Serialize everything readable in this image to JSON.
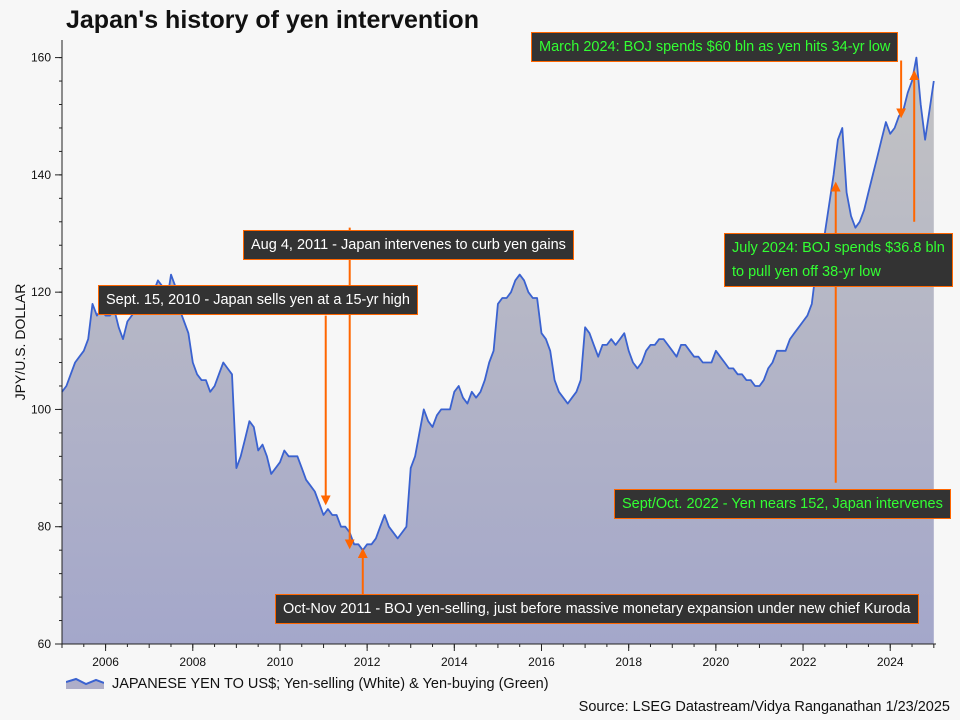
{
  "title": "Japan's history of yen intervention",
  "source": "Source: LSEG Datastream/Vidya Ranganathan 1/23/2025",
  "legend_label": "JAPANESE YEN TO US$;    Yen-selling (White) & Yen-buying (Green)",
  "colors": {
    "line": "#3a62d0",
    "area_top": "#c3c3c3",
    "area_bottom": "#a4a7ca",
    "arrow": "#ff6600",
    "callout_bg": "#333333",
    "callout_white": "#ffffff",
    "callout_green": "#33ff33"
  },
  "annotations": [
    {
      "text": "March 2024: BOJ spends $60 bln as yen hits 34-yr low",
      "color": "green",
      "arrow_x": 2024.25,
      "arrow_from": 159.5,
      "arrow_to": 150.5
    },
    {
      "text": "Aug 4, 2011 - Japan intervenes to curb yen gains",
      "color": "white",
      "arrow_x": 2011.6,
      "arrow_from": 131,
      "arrow_to": 77
    },
    {
      "text": "Sept. 15, 2010 - Japan sells yen at a 15-yr high",
      "color": "white",
      "arrow_x": 2011.05,
      "arrow_from": 116,
      "arrow_to": 84.5
    },
    {
      "text": "July 2024: BOJ spends $36.8 bln",
      "text2": "to pull yen off 38-yr low",
      "color": "green",
      "arrow_x": 2024.55,
      "arrow_from": 132,
      "arrow_to": 157
    },
    {
      "text": "Sept/Oct. 2022 - Yen nears 152, Japan intervenes",
      "color": "green",
      "arrow_x": 2022.75,
      "arrow_from": 87.5,
      "arrow_to": 138
    },
    {
      "text": "Oct-Nov 2011 - BOJ yen-selling, just before massive monetary expansion under new chief Kuroda",
      "color": "white",
      "arrow_x": 2011.9,
      "arrow_from": 65,
      "arrow_to": 75.5
    }
  ],
  "chart_data": {
    "type": "area",
    "xlabel": "",
    "ylabel": "JPY/U.S. DOLLAR",
    "xlim": [
      2005.0,
      2025.05
    ],
    "ylim": [
      60,
      163
    ],
    "xticks": [
      2006,
      2008,
      2010,
      2012,
      2014,
      2016,
      2018,
      2020,
      2022,
      2024
    ],
    "yticks": [
      60,
      80,
      100,
      120,
      140,
      160
    ],
    "grid": false,
    "legend": "bottom-left",
    "series": [
      {
        "name": "JAPANESE YEN TO US$",
        "x": [
          2005.0,
          2005.1,
          2005.2,
          2005.3,
          2005.4,
          2005.5,
          2005.6,
          2005.7,
          2005.8,
          2005.9,
          2006.0,
          2006.1,
          2006.2,
          2006.3,
          2006.4,
          2006.5,
          2006.6,
          2006.7,
          2006.8,
          2006.9,
          2007.0,
          2007.1,
          2007.2,
          2007.3,
          2007.4,
          2007.5,
          2007.6,
          2007.7,
          2007.8,
          2007.9,
          2008.0,
          2008.1,
          2008.2,
          2008.3,
          2008.4,
          2008.5,
          2008.6,
          2008.7,
          2008.8,
          2008.9,
          2009.0,
          2009.1,
          2009.2,
          2009.3,
          2009.4,
          2009.5,
          2009.6,
          2009.7,
          2009.8,
          2009.9,
          2010.0,
          2010.1,
          2010.2,
          2010.3,
          2010.4,
          2010.5,
          2010.6,
          2010.7,
          2010.8,
          2010.9,
          2011.0,
          2011.1,
          2011.2,
          2011.3,
          2011.4,
          2011.5,
          2011.6,
          2011.7,
          2011.8,
          2011.9,
          2012.0,
          2012.1,
          2012.2,
          2012.3,
          2012.4,
          2012.5,
          2012.6,
          2012.7,
          2012.8,
          2012.9,
          2013.0,
          2013.1,
          2013.2,
          2013.3,
          2013.4,
          2013.5,
          2013.6,
          2013.7,
          2013.8,
          2013.9,
          2014.0,
          2014.1,
          2014.2,
          2014.3,
          2014.4,
          2014.5,
          2014.6,
          2014.7,
          2014.8,
          2014.9,
          2015.0,
          2015.1,
          2015.2,
          2015.3,
          2015.4,
          2015.5,
          2015.6,
          2015.7,
          2015.8,
          2015.9,
          2016.0,
          2016.1,
          2016.2,
          2016.3,
          2016.4,
          2016.5,
          2016.6,
          2016.7,
          2016.8,
          2016.9,
          2017.0,
          2017.1,
          2017.2,
          2017.3,
          2017.4,
          2017.5,
          2017.6,
          2017.7,
          2017.8,
          2017.9,
          2018.0,
          2018.1,
          2018.2,
          2018.3,
          2018.4,
          2018.5,
          2018.6,
          2018.7,
          2018.8,
          2018.9,
          2019.0,
          2019.1,
          2019.2,
          2019.3,
          2019.4,
          2019.5,
          2019.6,
          2019.7,
          2019.8,
          2019.9,
          2020.0,
          2020.1,
          2020.2,
          2020.3,
          2020.4,
          2020.5,
          2020.6,
          2020.7,
          2020.8,
          2020.9,
          2021.0,
          2021.1,
          2021.2,
          2021.3,
          2021.4,
          2021.5,
          2021.6,
          2021.7,
          2021.8,
          2021.9,
          2022.0,
          2022.1,
          2022.2,
          2022.3,
          2022.4,
          2022.5,
          2022.6,
          2022.7,
          2022.8,
          2022.9,
          2023.0,
          2023.1,
          2023.2,
          2023.3,
          2023.4,
          2023.5,
          2023.6,
          2023.7,
          2023.8,
          2023.9,
          2024.0,
          2024.1,
          2024.2,
          2024.3,
          2024.4,
          2024.5,
          2024.6,
          2024.7,
          2024.8,
          2024.9,
          2025.0
        ],
        "y": [
          103,
          104,
          106,
          108,
          109,
          110,
          112,
          118,
          116,
          117,
          116,
          116,
          117,
          114,
          112,
          115,
          116,
          117,
          118,
          118,
          120,
          120,
          122,
          121,
          118,
          123,
          121,
          117,
          115,
          113,
          108,
          106,
          105,
          105,
          103,
          104,
          106,
          108,
          107,
          106,
          90,
          92,
          95,
          98,
          97,
          93,
          94,
          92,
          89,
          90,
          91,
          93,
          92,
          92,
          92,
          90,
          88,
          87,
          86,
          84,
          82,
          83,
          82,
          82,
          80,
          80,
          79,
          77,
          77,
          76,
          77,
          77,
          78,
          80,
          82,
          80,
          79,
          78,
          79,
          80,
          90,
          92,
          96,
          100,
          98,
          97,
          99,
          100,
          100,
          100,
          103,
          104,
          102,
          101,
          103,
          102,
          103,
          105,
          108,
          110,
          118,
          119,
          119,
          120,
          122,
          123,
          122,
          120,
          119,
          119,
          113,
          112,
          110,
          105,
          103,
          102,
          101,
          102,
          103,
          105,
          114,
          113,
          111,
          109,
          111,
          111,
          112,
          111,
          112,
          113,
          110,
          108,
          107,
          108,
          110,
          111,
          111,
          112,
          112,
          111,
          110,
          109,
          111,
          111,
          110,
          109,
          109,
          108,
          108,
          108,
          110,
          109,
          108,
          107,
          107,
          106,
          106,
          105,
          105,
          104,
          104,
          105,
          107,
          108,
          110,
          110,
          110,
          112,
          113,
          114,
          115,
          116,
          118,
          124,
          128,
          130,
          135,
          140,
          146,
          148,
          137,
          133,
          131,
          132,
          134,
          137,
          140,
          143,
          146,
          149,
          147,
          148,
          150,
          151,
          154,
          156,
          160,
          152,
          146,
          151,
          156
        ]
      }
    ]
  }
}
